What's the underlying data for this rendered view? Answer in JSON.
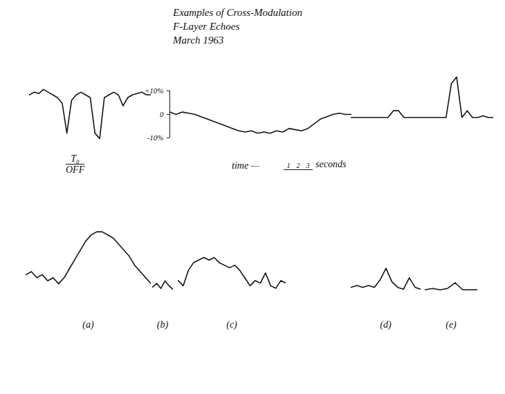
{
  "title": [
    "Examples of Cross-Modulation",
    "F-Layer Echoes",
    "March 1963"
  ],
  "time_label": "time —",
  "time_scale": {
    "labels": [
      "1",
      "2",
      "3"
    ],
    "unit": "seconds"
  },
  "chart_data": [
    {
      "type": "line",
      "color": "#111111",
      "tick_labels": false,
      "ylim": [
        -17,
        4
      ],
      "annotations": [
        "T₀",
        "OFF"
      ],
      "values": [
        0,
        1,
        0.5,
        2,
        1,
        0,
        -1,
        -3,
        -14,
        -2,
        0,
        1,
        0,
        -1,
        -14,
        -16,
        -1,
        0,
        1,
        0,
        -4,
        -1,
        0,
        0.5,
        1,
        0,
        0
      ]
    },
    {
      "type": "line",
      "color": "#111111",
      "tick_labels": "y",
      "ylim": [
        -10,
        10
      ],
      "yticks": [
        {
          "value": 10,
          "label": "+10%"
        },
        0,
        {
          "value": -10,
          "label": "-10%"
        }
      ],
      "values": [
        1,
        0,
        1,
        0.5,
        0,
        -1,
        -2,
        -3,
        -4,
        -5,
        -6,
        -7,
        -7.5,
        -7,
        -8,
        -7.5,
        -8,
        -7,
        -7.5,
        -6,
        -6.5,
        -7,
        -6,
        -4,
        -2,
        -1,
        0,
        0.5,
        0,
        0
      ]
    },
    {
      "type": "line",
      "color": "#111111",
      "tick_labels": false,
      "ylim": [
        -4,
        14
      ],
      "values": [
        0,
        0,
        0,
        0,
        0,
        0,
        0,
        0,
        2,
        2,
        0,
        0,
        0,
        0,
        0,
        0,
        0,
        0,
        0,
        10,
        12,
        0,
        2,
        0,
        0,
        0.5,
        0,
        0
      ]
    },
    {
      "type": "line",
      "color": "#111111",
      "tick_labels": false,
      "ylim": [
        -5,
        16
      ],
      "label": "(a)",
      "values": [
        0,
        1,
        -1,
        0,
        -2,
        -1,
        -3,
        -1,
        2,
        5,
        8,
        11,
        13,
        14,
        14,
        13,
        12,
        10,
        8,
        6,
        3,
        1,
        -1,
        -3
      ]
    },
    {
      "type": "line",
      "color": "#111111",
      "tick_labels": false,
      "ylim": [
        -5,
        16
      ],
      "label": "(b)",
      "values": [
        0,
        3,
        -1,
        5,
        1,
        -2
      ]
    },
    {
      "type": "line",
      "color": "#111111",
      "tick_labels": false,
      "ylim": [
        -5,
        16
      ],
      "label": "(c)",
      "values": [
        0,
        -2,
        4,
        7,
        8,
        9,
        8,
        9,
        7,
        6,
        5,
        6,
        4,
        1,
        -2,
        0,
        -1,
        3,
        -2,
        -3,
        0,
        -1
      ]
    },
    {
      "type": "line",
      "color": "#111111",
      "tick_labels": false,
      "ylim": [
        -5,
        16
      ],
      "label": "(d)",
      "values": [
        0,
        1,
        0,
        1,
        0,
        4,
        10,
        3,
        0,
        -1,
        5,
        0,
        -1
      ]
    },
    {
      "type": "line",
      "color": "#111111",
      "tick_labels": false,
      "ylim": [
        -5,
        16
      ],
      "label": "(e)",
      "values": [
        0,
        1,
        0,
        1,
        5,
        0,
        0,
        0
      ]
    }
  ]
}
